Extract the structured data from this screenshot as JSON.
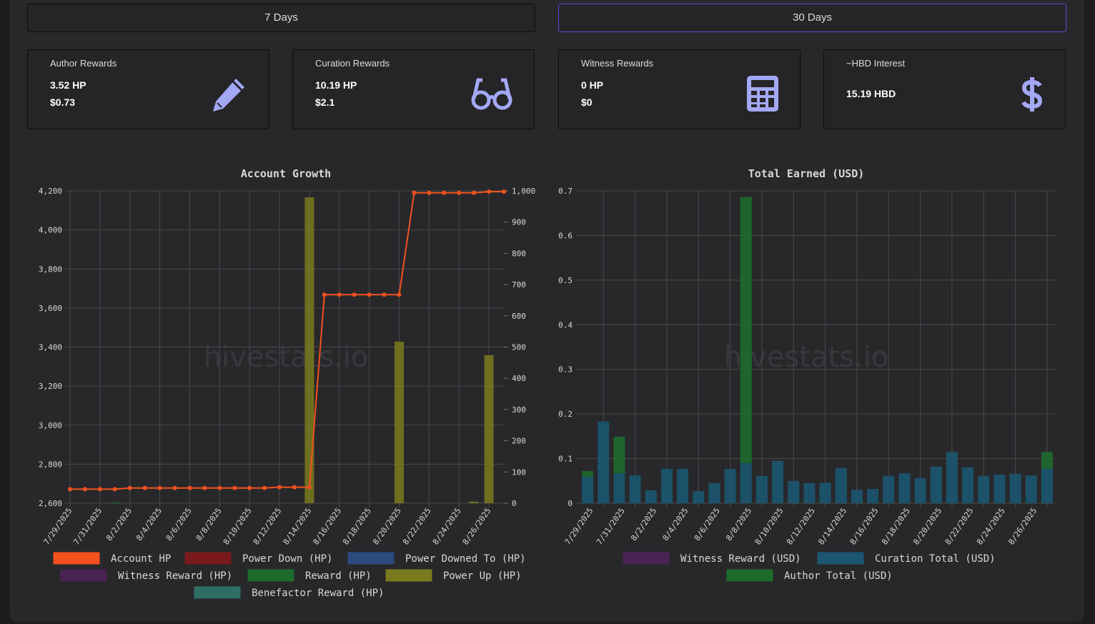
{
  "buttons": [
    "7 Days",
    "30 Days"
  ],
  "cards": [
    {
      "title": "Author Rewards",
      "lines": [
        "3.52 HP",
        "$0.73"
      ]
    },
    {
      "title": "Curation Rewards",
      "lines": [
        "10.19 HP",
        "$2.1"
      ]
    },
    {
      "title": "Witness Rewards",
      "lines": [
        "0 HP",
        "$0"
      ]
    },
    {
      "title": "~HBD Interest",
      "lines": [
        "15.19 HBD"
      ]
    }
  ],
  "chart_data": [
    {
      "type": "combo",
      "title": "Account Growth",
      "watermark": "hivestats.io",
      "categories": [
        "7/29/2025",
        null,
        "7/31/2025",
        null,
        "8/2/2025",
        null,
        "8/4/2025",
        null,
        "8/6/2025",
        null,
        "8/8/2025",
        null,
        "8/10/2025",
        null,
        "8/12/2025",
        null,
        "8/14/2025",
        null,
        "8/16/2025",
        null,
        "8/18/2025",
        null,
        "8/20/2025",
        null,
        "8/22/2025",
        null,
        "8/24/2025",
        null,
        "8/26/2025",
        null
      ],
      "ylim": [
        2600,
        4200
      ],
      "yticks": [
        {
          "value": 2600,
          "label": "2,600"
        },
        {
          "value": 2800,
          "label": "2,800"
        },
        {
          "value": 3000,
          "label": "3,000"
        },
        {
          "value": 3200,
          "label": "3,200"
        },
        {
          "value": 3400,
          "label": "3,400"
        },
        {
          "value": 3600,
          "label": "3,600"
        },
        {
          "value": 3800,
          "label": "3,800"
        },
        {
          "value": 4000,
          "label": "4,000"
        },
        {
          "value": 4200,
          "label": "4,200"
        }
      ],
      "y2lim": [
        0,
        1000
      ],
      "y2ticks": [
        0,
        100,
        200,
        300,
        400,
        500,
        600,
        700,
        800,
        900,
        {
          "value": 1000,
          "label": "1,000"
        }
      ],
      "grid": true,
      "series": [
        {
          "name": "Account HP",
          "kind": "line",
          "color": "#f4511e",
          "values": [
            2672,
            2672,
            2672,
            2672,
            2678,
            2678,
            2678,
            2678,
            2678,
            2678,
            2678,
            2678,
            2678,
            2678,
            2682,
            2682,
            2682,
            3668,
            3668,
            3668,
            3668,
            3668,
            3668,
            4190,
            4190,
            4190,
            4190,
            4190,
            4196,
            4196
          ]
        },
        {
          "name": "Power Down (HP)",
          "kind": "bar",
          "axis": "y2",
          "color": "#7a1a1c",
          "values": [
            0,
            0,
            0,
            0,
            0,
            0,
            0,
            0,
            0,
            0,
            0,
            0,
            0,
            0,
            0,
            0,
            0,
            0,
            0,
            0,
            0,
            0,
            0,
            0,
            0,
            0,
            0,
            0,
            0,
            0
          ]
        },
        {
          "name": "Power Downed To (HP)",
          "kind": "bar",
          "axis": "y2",
          "color": "#2b4a80",
          "values": [
            0,
            0,
            0,
            0,
            0,
            0,
            0,
            0,
            0,
            0,
            0,
            0,
            0,
            0,
            0,
            0,
            0,
            0,
            0,
            0,
            0,
            0,
            0,
            0,
            0,
            0,
            0,
            0,
            0,
            0
          ]
        },
        {
          "name": "Witness Reward (HP)",
          "kind": "bar",
          "axis": "y2",
          "color": "#4a2352",
          "values": [
            0,
            0,
            0,
            0,
            0,
            0,
            0,
            0,
            0,
            0,
            0,
            0,
            0,
            0,
            0,
            0,
            0,
            0,
            0,
            0,
            0,
            0,
            0,
            0,
            0,
            0,
            0,
            0,
            0,
            0
          ]
        },
        {
          "name": "Reward (HP)",
          "kind": "bar",
          "axis": "y2",
          "color": "#1c6b2c",
          "values": [
            0,
            0,
            0,
            3,
            0,
            0,
            0,
            0,
            0,
            0,
            0,
            0,
            0,
            0,
            0,
            0,
            0,
            0,
            0,
            0,
            0,
            0,
            0,
            0,
            0,
            0,
            0,
            0,
            0,
            0
          ]
        },
        {
          "name": "Power Up (HP)",
          "kind": "bar",
          "axis": "y2",
          "color": "#7a7a1e",
          "values": [
            0,
            0,
            0,
            0,
            0,
            0,
            0,
            0,
            0,
            0,
            0,
            0,
            0,
            0,
            0,
            0,
            979,
            0,
            0,
            0,
            0,
            0,
            517,
            0,
            0,
            0,
            0,
            5,
            474,
            0
          ]
        },
        {
          "name": "Benefactor Reward (HP)",
          "kind": "bar",
          "axis": "y2",
          "color": "#2e6e64",
          "values": [
            0,
            0,
            0,
            0,
            0,
            0,
            0,
            0,
            0,
            0,
            0,
            0,
            0,
            0,
            0,
            0,
            0,
            0,
            0,
            0,
            0,
            0,
            0,
            0,
            0,
            0,
            0,
            0,
            0,
            0
          ]
        }
      ]
    },
    {
      "type": "stacked_bar",
      "title": "Total Earned (USD)",
      "watermark": "hivestats.io",
      "categories": [
        "7/29/2025",
        null,
        "7/31/2025",
        null,
        "8/2/2025",
        null,
        "8/4/2025",
        null,
        "8/6/2025",
        null,
        "8/8/2025",
        null,
        "8/10/2025",
        null,
        "8/12/2025",
        null,
        "8/14/2025",
        null,
        "8/16/2025",
        null,
        "8/18/2025",
        null,
        "8/20/2025",
        null,
        "8/22/2025",
        null,
        "8/24/2025",
        null,
        "8/26/2025",
        null
      ],
      "ylim": [
        0,
        0.7
      ],
      "yticks": [
        0,
        0.1,
        0.2,
        0.3,
        0.4,
        0.5,
        0.6,
        0.7
      ],
      "grid": true,
      "series": [
        {
          "name": "Witness Reward (USD)",
          "color": "#4a2352",
          "values": [
            0,
            0,
            0,
            0,
            0,
            0,
            0,
            0,
            0,
            0,
            0,
            0,
            0,
            0,
            0,
            0,
            0,
            0,
            0,
            0,
            0,
            0,
            0,
            0,
            0,
            0,
            0,
            0,
            0,
            0
          ]
        },
        {
          "name": "Curation Total (USD)",
          "color": "#1b5670",
          "values": [
            0.059,
            0.183,
            0.067,
            0.062,
            0.029,
            0.077,
            0.077,
            0.027,
            0.045,
            0.077,
            0.09,
            0.061,
            0.095,
            0.05,
            0.045,
            0.046,
            0.079,
            0.03,
            0.032,
            0.061,
            0.067,
            0.056,
            0.082,
            0.115,
            0.08,
            0.061,
            0.064,
            0.066,
            0.062,
            0.077
          ]
        },
        {
          "name": "Author Total (USD)",
          "color": "#1c6b2c",
          "values": [
            0.013,
            0,
            0.082,
            0,
            0,
            0,
            0,
            0,
            0,
            0,
            0.596,
            0,
            0,
            0,
            0,
            0,
            0,
            0,
            0,
            0,
            0,
            0,
            0,
            0,
            0,
            0,
            0,
            0,
            0,
            0.038
          ]
        }
      ]
    }
  ]
}
